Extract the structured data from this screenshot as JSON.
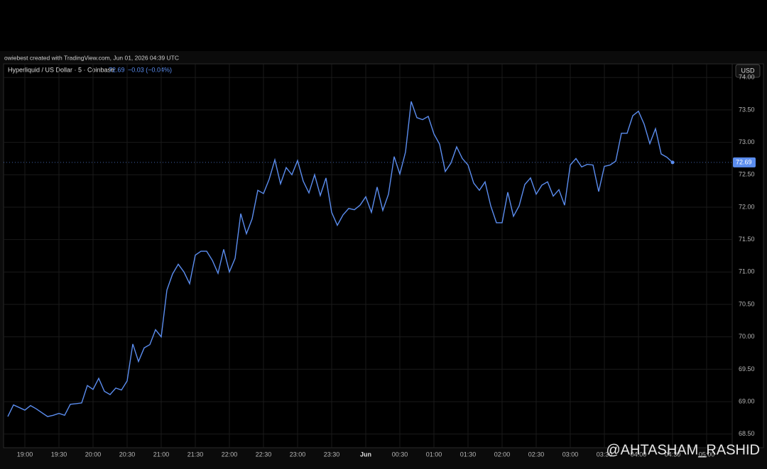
{
  "header": {
    "credit": "owiebest created with TradingView.com, Jun 01, 2026 04:39 UTC",
    "symbol": "Hyperliquid / US Dollar · 5 · Coinbase",
    "change": "−0.03 (−0.04%)",
    "currency": "USD"
  },
  "watermark": "@AHTASHAM_RASHID",
  "chart_data": {
    "type": "line",
    "color": "#5b8def",
    "grid": true,
    "x": [
      "18:45",
      "18:50",
      "18:55",
      "19:00",
      "19:05",
      "19:10",
      "19:15",
      "19:20",
      "19:25",
      "19:30",
      "19:35",
      "19:40",
      "19:45",
      "19:50",
      "19:55",
      "20:00",
      "20:05",
      "20:10",
      "20:15",
      "20:20",
      "20:25",
      "20:30",
      "20:35",
      "20:40",
      "20:45",
      "20:50",
      "20:55",
      "21:00",
      "21:05",
      "21:10",
      "21:15",
      "21:20",
      "21:25",
      "21:30",
      "21:35",
      "21:40",
      "21:45",
      "21:50",
      "21:55",
      "22:00",
      "22:05",
      "22:10",
      "22:15",
      "22:20",
      "22:25",
      "22:30",
      "22:35",
      "22:40",
      "22:45",
      "22:50",
      "22:55",
      "23:00",
      "23:05",
      "23:10",
      "23:15",
      "23:20",
      "23:25",
      "23:30",
      "23:35",
      "23:40",
      "23:45",
      "23:50",
      "23:55",
      "00:00",
      "00:05",
      "00:10",
      "00:15",
      "00:20",
      "00:25",
      "00:30",
      "00:35",
      "00:40",
      "00:45",
      "00:50",
      "00:55",
      "01:00",
      "01:05",
      "01:10",
      "01:15",
      "01:20",
      "01:25",
      "01:30",
      "01:35",
      "01:40",
      "01:45",
      "01:50",
      "01:55",
      "02:00",
      "02:05",
      "02:10",
      "02:15",
      "02:20",
      "02:25",
      "02:30",
      "02:35",
      "02:40",
      "02:45",
      "02:50",
      "02:55",
      "03:00",
      "03:05",
      "03:10",
      "03:15",
      "03:20",
      "03:25",
      "03:30",
      "03:35",
      "03:40",
      "03:45",
      "03:50",
      "03:55",
      "04:00",
      "04:05",
      "04:10",
      "04:15",
      "04:20",
      "04:25",
      "04:30"
    ],
    "values": [
      68.77,
      68.95,
      68.91,
      68.87,
      68.94,
      68.89,
      68.83,
      68.77,
      68.79,
      68.82,
      68.79,
      68.96,
      68.97,
      68.98,
      69.25,
      69.19,
      69.36,
      69.16,
      69.11,
      69.21,
      69.18,
      69.32,
      69.89,
      69.62,
      69.83,
      69.88,
      70.11,
      70.0,
      70.72,
      70.97,
      71.12,
      71.0,
      70.82,
      71.26,
      71.32,
      71.32,
      71.18,
      70.98,
      71.35,
      71.0,
      71.21,
      71.9,
      71.59,
      71.82,
      72.26,
      72.21,
      72.43,
      72.73,
      72.36,
      72.61,
      72.5,
      72.72,
      72.4,
      72.22,
      72.5,
      72.18,
      72.45,
      71.92,
      71.72,
      71.88,
      71.98,
      71.96,
      72.03,
      72.16,
      71.92,
      72.31,
      71.95,
      72.2,
      72.78,
      72.51,
      72.85,
      73.63,
      73.38,
      73.35,
      73.4,
      73.13,
      72.97,
      72.55,
      72.68,
      72.93,
      72.75,
      72.65,
      72.37,
      72.26,
      72.39,
      72.02,
      71.76,
      71.76,
      72.23,
      71.86,
      72.02,
      72.35,
      72.45,
      72.2,
      72.34,
      72.39,
      72.17,
      72.27,
      72.03,
      72.65,
      72.75,
      72.62,
      72.66,
      72.65,
      72.24,
      72.63,
      72.65,
      72.71,
      73.14,
      73.14,
      73.41,
      73.48,
      73.28,
      72.98,
      73.21,
      72.82,
      72.77,
      72.69
    ],
    "ylim": [
      68.29,
      74.21
    ],
    "yticks": [
      {
        "value": 68.5,
        "label": "68.50"
      },
      {
        "value": 69,
        "label": "69.00"
      },
      {
        "value": 69.5,
        "label": "69.50"
      },
      {
        "value": 70,
        "label": "70.00"
      },
      {
        "value": 70.5,
        "label": "70.50"
      },
      {
        "value": 71,
        "label": "71.00"
      },
      {
        "value": 71.5,
        "label": "71.50"
      },
      {
        "value": 72,
        "label": "72.00"
      },
      {
        "value": 72.5,
        "label": "72.50"
      },
      {
        "value": 73,
        "label": "73.00"
      },
      {
        "value": 73.5,
        "label": "73.50"
      },
      {
        "value": 74,
        "label": "74.00"
      }
    ],
    "xticks": [
      "19:00",
      "19:30",
      "20:00",
      "20:30",
      "21:00",
      "21:30",
      "22:00",
      "22:30",
      "23:00",
      "23:30",
      {
        "value": "00:00",
        "label": "Jun"
      },
      "00:30",
      "01:00",
      "01:30",
      "02:00",
      "02:30",
      "03:00",
      "03:30",
      "04:00",
      "04:30",
      "05:00"
    ]
  }
}
